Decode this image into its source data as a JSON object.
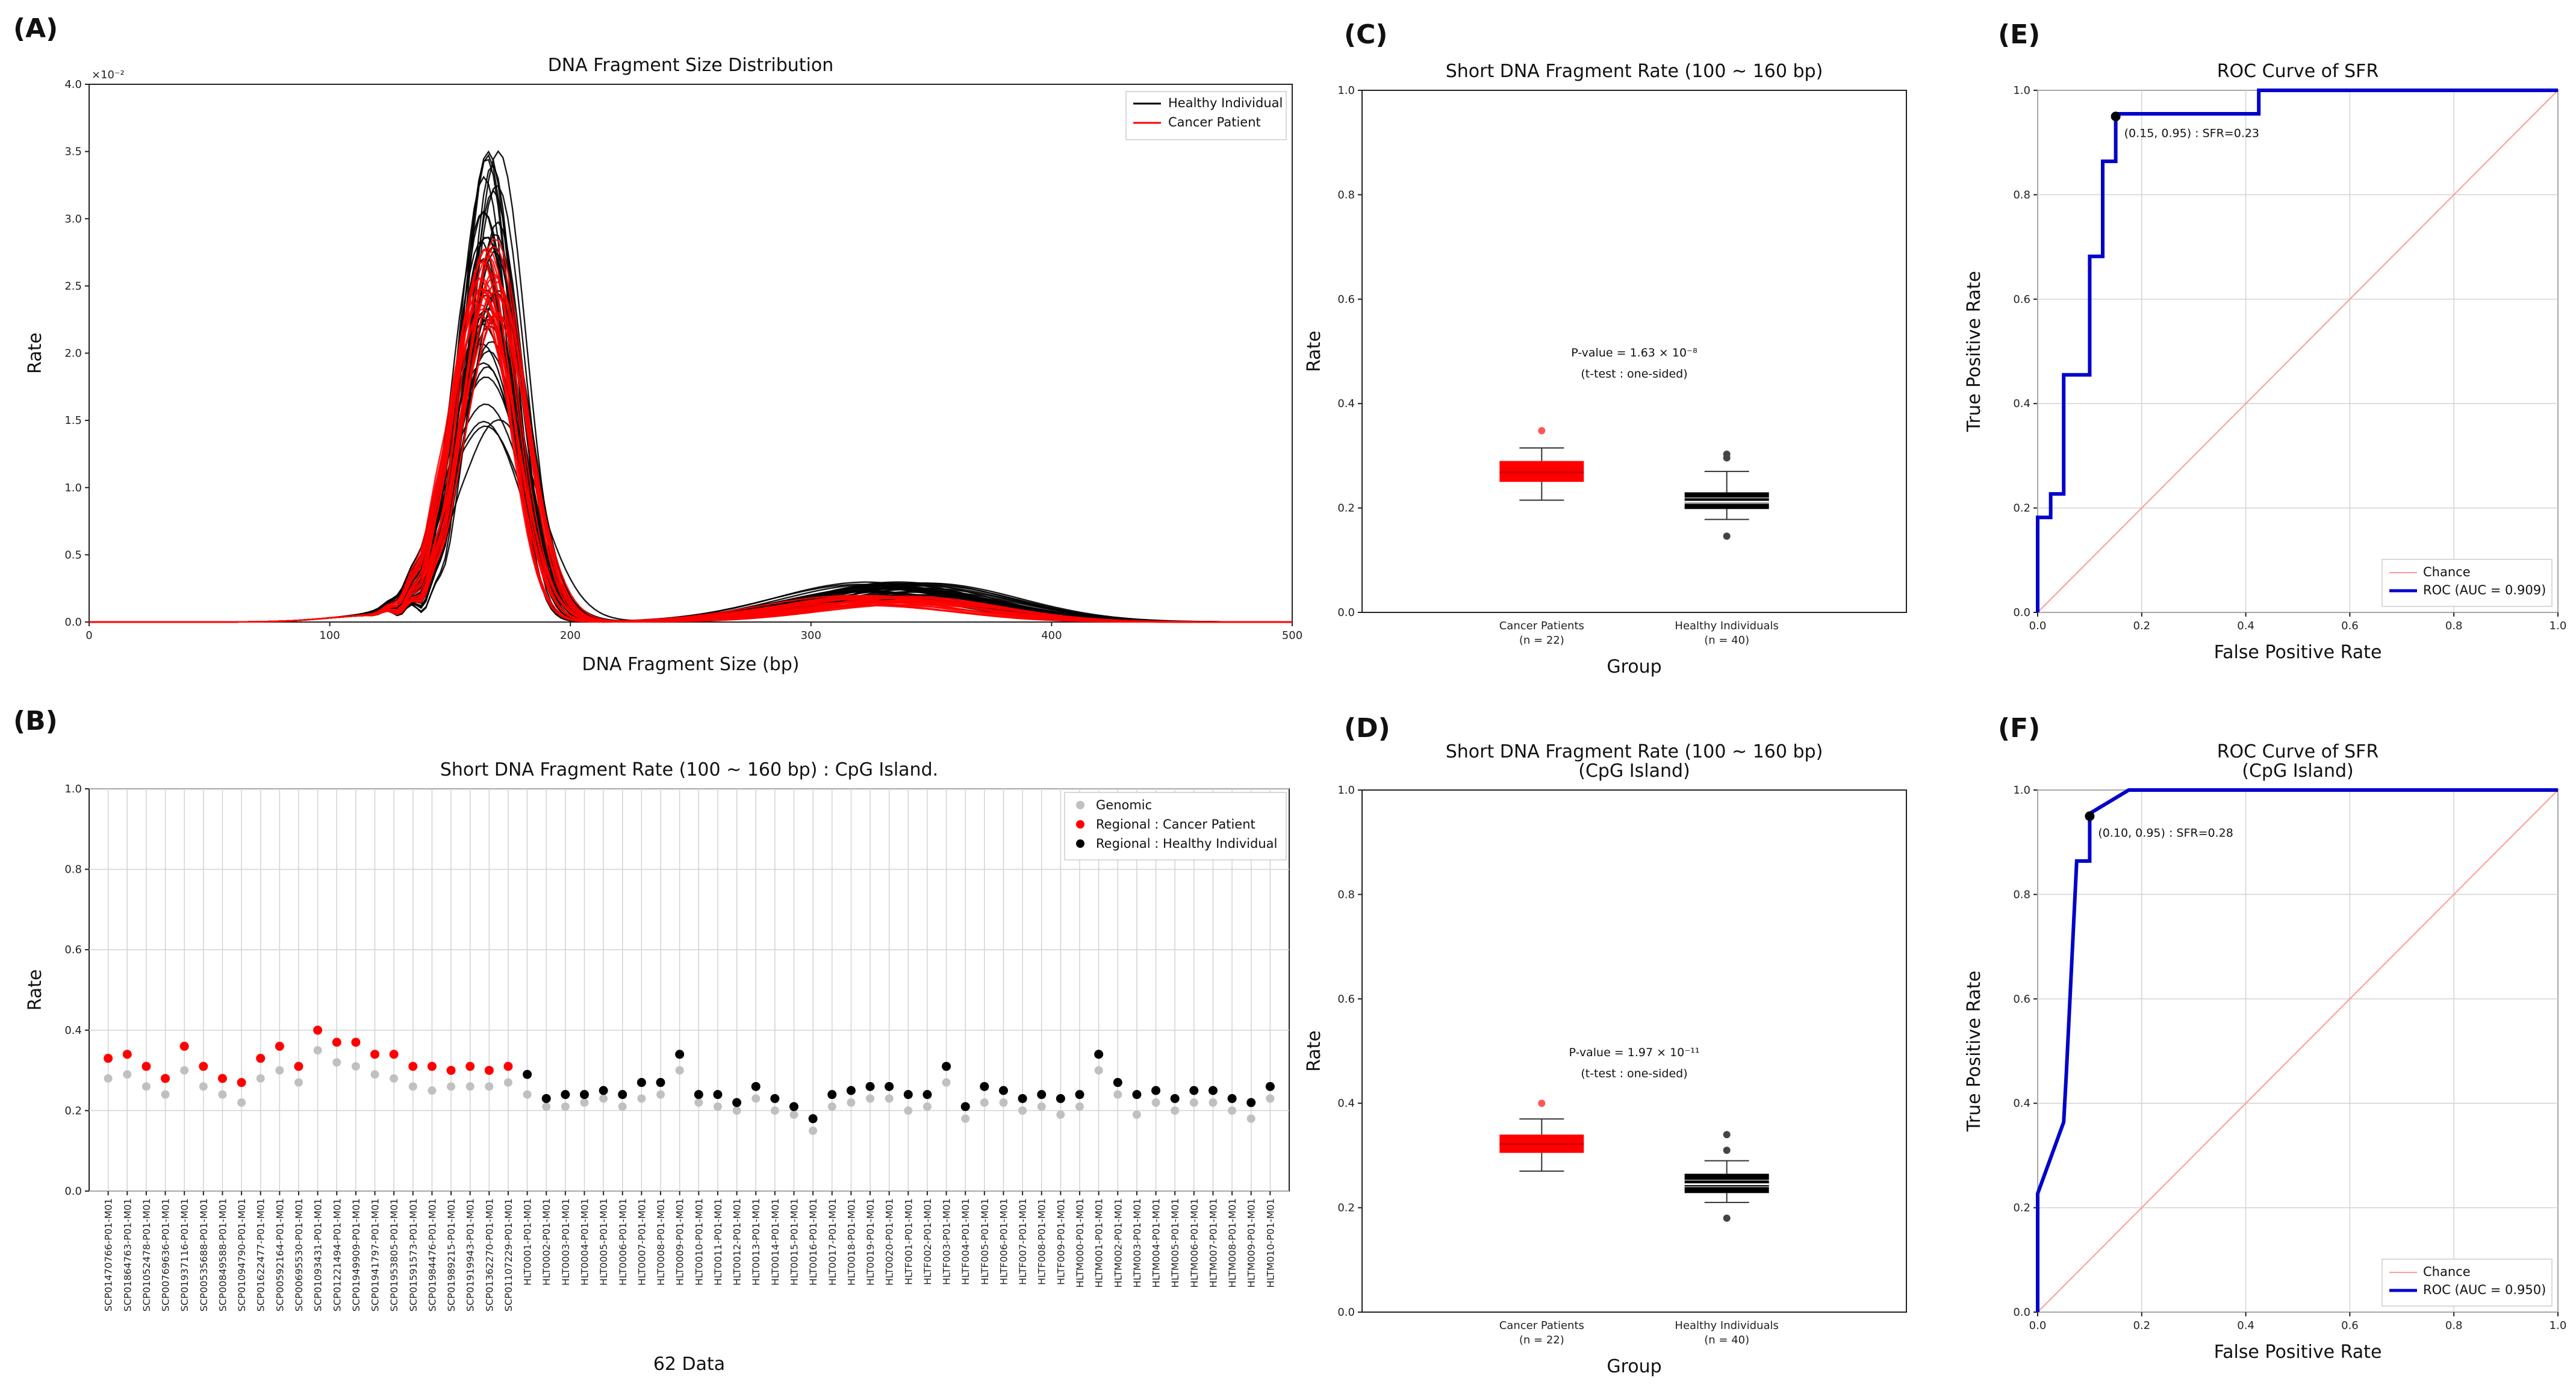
{
  "colors": {
    "healthy": "#000000",
    "cancer": "#ff0000",
    "genomic": "#c0c0c0",
    "roc": "#0000cc",
    "chance": "#ff9999",
    "grid": "#d3d3d3"
  },
  "chart_data": [
    {
      "panel": "(A)",
      "type": "line",
      "title": "DNA Fragment Size Distribution",
      "xlabel": "DNA Fragment Size (bp)",
      "ylabel": "Rate",
      "y_multiplier": "×10⁻²",
      "xlim": [
        0,
        500
      ],
      "ylim": [
        0,
        4.0
      ],
      "xticks": [
        "0",
        "100",
        "200",
        "300",
        "400",
        "500"
      ],
      "yticks": [
        "0.0",
        "0.5",
        "1.0",
        "1.5",
        "2.0",
        "2.5",
        "3.0",
        "3.5",
        "4.0"
      ],
      "grid": false,
      "legend_position": "top-right",
      "series": [
        {
          "name": "Healthy Individual",
          "count": 40,
          "peak_range": [
            1.45,
            3.5
          ],
          "peak_x": 167,
          "second_peak_range": [
            0.18,
            0.3
          ],
          "second_peak_x": 335
        },
        {
          "name": "Cancer Patient",
          "count": 22,
          "peak_range": [
            2.05,
            2.85
          ],
          "peak_x": 166,
          "second_peak_range": [
            0.12,
            0.2
          ],
          "second_peak_x": 330
        }
      ]
    },
    {
      "panel": "(B)",
      "type": "scatter",
      "title": "Short DNA Fragment Rate (100 ~ 160 bp) : CpG Island.",
      "xlabel": "62 Data",
      "ylabel": "Rate",
      "ylim": [
        0,
        1.0
      ],
      "yticks": [
        "0.0",
        "0.2",
        "0.4",
        "0.6",
        "0.8",
        "1.0"
      ],
      "grid": true,
      "legend_position": "top-right",
      "legend": [
        "Genomic",
        "Regional : Cancer Patient",
        "Regional : Healthy Individual"
      ],
      "categories": [
        "SCP01470766-P01-M01",
        "SCP01864763-P01-M01",
        "SCP01052478-P01-M01",
        "SCP00769636-P01-M01",
        "SCP01937116-P01-M01",
        "SCP00535688-P01-M01",
        "SCP00849588-P01-M01",
        "SCP01094790-P01-M01",
        "SCP01622477-P01-M01",
        "SCP00592164-P01-M01",
        "SCP00695530-P01-M01",
        "SCP01093431-P01-M01",
        "SCP01221494-P01-M01",
        "SCP01949909-P01-M01",
        "SCP01941797-P01-M01",
        "SCP01953805-P01-M01",
        "SCP01591573-P01-M01",
        "SCP01984476-P01-M01",
        "SCP01989215-P01-M01",
        "SCP01919943-P01-M01",
        "SCP01362270-P01-M01",
        "SCP01107229-P01-M01",
        "HLT0001-P01-M01",
        "HLT0002-P01-M01",
        "HLT0003-P01-M01",
        "HLT0004-P01-M01",
        "HLT0005-P01-M01",
        "HLT0006-P01-M01",
        "HLT0007-P01-M01",
        "HLT0008-P01-M01",
        "HLT0009-P01-M01",
        "HLT0010-P01-M01",
        "HLT0011-P01-M01",
        "HLT0012-P01-M01",
        "HLT0013-P01-M01",
        "HLT0014-P01-M01",
        "HLT0015-P01-M01",
        "HLT0016-P01-M01",
        "HLT0017-P01-M01",
        "HLT0018-P01-M01",
        "HLT0019-P01-M01",
        "HLT0020-P01-M01",
        "HLTF001-P01-M01",
        "HLTF002-P01-M01",
        "HLTF003-P01-M01",
        "HLTF004-P01-M01",
        "HLTF005-P01-M01",
        "HLTF006-P01-M01",
        "HLTF007-P01-M01",
        "HLTF008-P01-M01",
        "HLTF009-P01-M01",
        "HLTM000-P01-M01",
        "HLTM001-P01-M01",
        "HLTM002-P01-M01",
        "HLTM003-P01-M01",
        "HLTM004-P01-M01",
        "HLTM005-P01-M01",
        "HLTM006-P01-M01",
        "HLTM007-P01-M01",
        "HLTM008-P01-M01",
        "HLTM009-P01-M01",
        "HLTM010-P01-M01"
      ],
      "regional": [
        0.33,
        0.34,
        0.31,
        0.28,
        0.36,
        0.31,
        0.28,
        0.27,
        0.33,
        0.36,
        0.31,
        0.4,
        0.37,
        0.37,
        0.34,
        0.34,
        0.31,
        0.31,
        0.3,
        0.31,
        0.3,
        0.31,
        0.29,
        0.23,
        0.24,
        0.24,
        0.25,
        0.24,
        0.27,
        0.27,
        0.34,
        0.24,
        0.24,
        0.22,
        0.26,
        0.23,
        0.21,
        0.18,
        0.24,
        0.25,
        0.26,
        0.26,
        0.24,
        0.24,
        0.31,
        0.21,
        0.26,
        0.25,
        0.23,
        0.24,
        0.23,
        0.24,
        0.34,
        0.27,
        0.24,
        0.25,
        0.23,
        0.25,
        0.25,
        0.23,
        0.22,
        0.26
      ],
      "genomic": [
        0.28,
        0.29,
        0.26,
        0.24,
        0.3,
        0.26,
        0.24,
        0.22,
        0.28,
        0.3,
        0.27,
        0.35,
        0.32,
        0.31,
        0.29,
        0.28,
        0.26,
        0.25,
        0.26,
        0.26,
        0.26,
        0.27,
        0.24,
        0.21,
        0.21,
        0.22,
        0.23,
        0.21,
        0.23,
        0.24,
        0.3,
        0.22,
        0.21,
        0.2,
        0.23,
        0.2,
        0.19,
        0.15,
        0.21,
        0.22,
        0.23,
        0.23,
        0.2,
        0.21,
        0.27,
        0.18,
        0.22,
        0.22,
        0.2,
        0.21,
        0.19,
        0.21,
        0.3,
        0.24,
        0.19,
        0.22,
        0.2,
        0.22,
        0.22,
        0.2,
        0.18,
        0.23
      ],
      "cancer_count": 22
    },
    {
      "panel": "(C)",
      "type": "box",
      "title": "Short DNA Fragment Rate (100 ~ 160 bp)",
      "xlabel": "Group",
      "ylabel": "Rate",
      "ylim": [
        0,
        1.0
      ],
      "yticks": [
        "0.0",
        "0.2",
        "0.4",
        "0.6",
        "0.8",
        "1.0"
      ],
      "grid": false,
      "categories": [
        "Cancer Patients",
        "Healthy Individuals"
      ],
      "subcategories": [
        "(n = 22)",
        "(n = 40)"
      ],
      "boxes": [
        {
          "q1": 0.25,
          "median": 0.268,
          "q3": 0.29,
          "whislo": 0.215,
          "whishi": 0.315,
          "fliers": [
            0.348
          ]
        },
        {
          "q1": 0.198,
          "median": 0.212,
          "q3": 0.23,
          "whislo": 0.178,
          "whishi": 0.27,
          "fliers": [
            0.296,
            0.303,
            0.146
          ]
        }
      ],
      "annotation": [
        "P-value = 1.63 × 10⁻⁸",
        "(t-test : one-sided)"
      ]
    },
    {
      "panel": "(D)",
      "type": "box",
      "title": [
        "Short DNA Fragment Rate (100 ~ 160 bp)",
        "(CpG Island)"
      ],
      "xlabel": "Group",
      "ylabel": "Rate",
      "ylim": [
        0,
        1.0
      ],
      "yticks": [
        "0.0",
        "0.2",
        "0.4",
        "0.6",
        "0.8",
        "1.0"
      ],
      "grid": false,
      "categories": [
        "Cancer Patients",
        "Healthy Individuals"
      ],
      "subcategories": [
        "(n = 22)",
        "(n = 40)"
      ],
      "boxes": [
        {
          "q1": 0.305,
          "median": 0.322,
          "q3": 0.34,
          "whislo": 0.27,
          "whishi": 0.37,
          "fliers": [
            0.4
          ]
        },
        {
          "q1": 0.228,
          "median": 0.245,
          "q3": 0.265,
          "whislo": 0.21,
          "whishi": 0.29,
          "fliers": [
            0.31,
            0.34,
            0.18
          ]
        }
      ],
      "annotation": [
        "P-value = 1.97 × 10⁻¹¹",
        "(t-test : one-sided)"
      ]
    },
    {
      "panel": "(E)",
      "type": "line",
      "title": "ROC Curve of SFR",
      "xlabel": "False Positive Rate",
      "ylabel": "True Positive Rate",
      "xlim": [
        0,
        1.0
      ],
      "ylim": [
        0,
        1.0
      ],
      "xticks": [
        "0.0",
        "0.2",
        "0.4",
        "0.6",
        "0.8",
        "1.0"
      ],
      "yticks": [
        "0.0",
        "0.2",
        "0.4",
        "0.6",
        "0.8",
        "1.0"
      ],
      "grid": true,
      "legend_position": "bottom-right",
      "series": [
        {
          "name": "Chance",
          "x": [
            0,
            1
          ],
          "y": [
            0,
            1
          ]
        },
        {
          "name": "ROC (AUC = 0.909)",
          "x": [
            0,
            0,
            0.025,
            0.025,
            0.05,
            0.05,
            0.1,
            0.1,
            0.125,
            0.125,
            0.15,
            0.15,
            0.425,
            0.425,
            1.0
          ],
          "y": [
            0,
            0.182,
            0.182,
            0.227,
            0.227,
            0.455,
            0.455,
            0.682,
            0.682,
            0.864,
            0.864,
            0.955,
            0.955,
            1.0,
            1.0
          ]
        }
      ],
      "marker": {
        "x": 0.15,
        "y": 0.95,
        "label": "(0.15, 0.95) : SFR=0.23"
      }
    },
    {
      "panel": "(F)",
      "type": "line",
      "title": [
        "ROC Curve of SFR",
        "(CpG Island)"
      ],
      "xlabel": "False Positive Rate",
      "ylabel": "True Positive Rate",
      "xlim": [
        0,
        1.0
      ],
      "ylim": [
        0,
        1.0
      ],
      "xticks": [
        "0.0",
        "0.2",
        "0.4",
        "0.6",
        "0.8",
        "1.0"
      ],
      "yticks": [
        "0.0",
        "0.2",
        "0.4",
        "0.6",
        "0.8",
        "1.0"
      ],
      "grid": true,
      "legend_position": "bottom-right",
      "series": [
        {
          "name": "Chance",
          "x": [
            0,
            1
          ],
          "y": [
            0,
            1
          ]
        },
        {
          "name": "ROC (AUC = 0.950)",
          "x": [
            0,
            0,
            0.05,
            0.055,
            0.075,
            0.075,
            0.1,
            0.1,
            0.175,
            1.0
          ],
          "y": [
            0,
            0.227,
            0.364,
            0.455,
            0.864,
            0.864,
            0.864,
            0.955,
            1.0,
            1.0
          ]
        }
      ],
      "marker": {
        "x": 0.1,
        "y": 0.95,
        "label": "(0.10, 0.95) : SFR=0.28"
      }
    }
  ]
}
